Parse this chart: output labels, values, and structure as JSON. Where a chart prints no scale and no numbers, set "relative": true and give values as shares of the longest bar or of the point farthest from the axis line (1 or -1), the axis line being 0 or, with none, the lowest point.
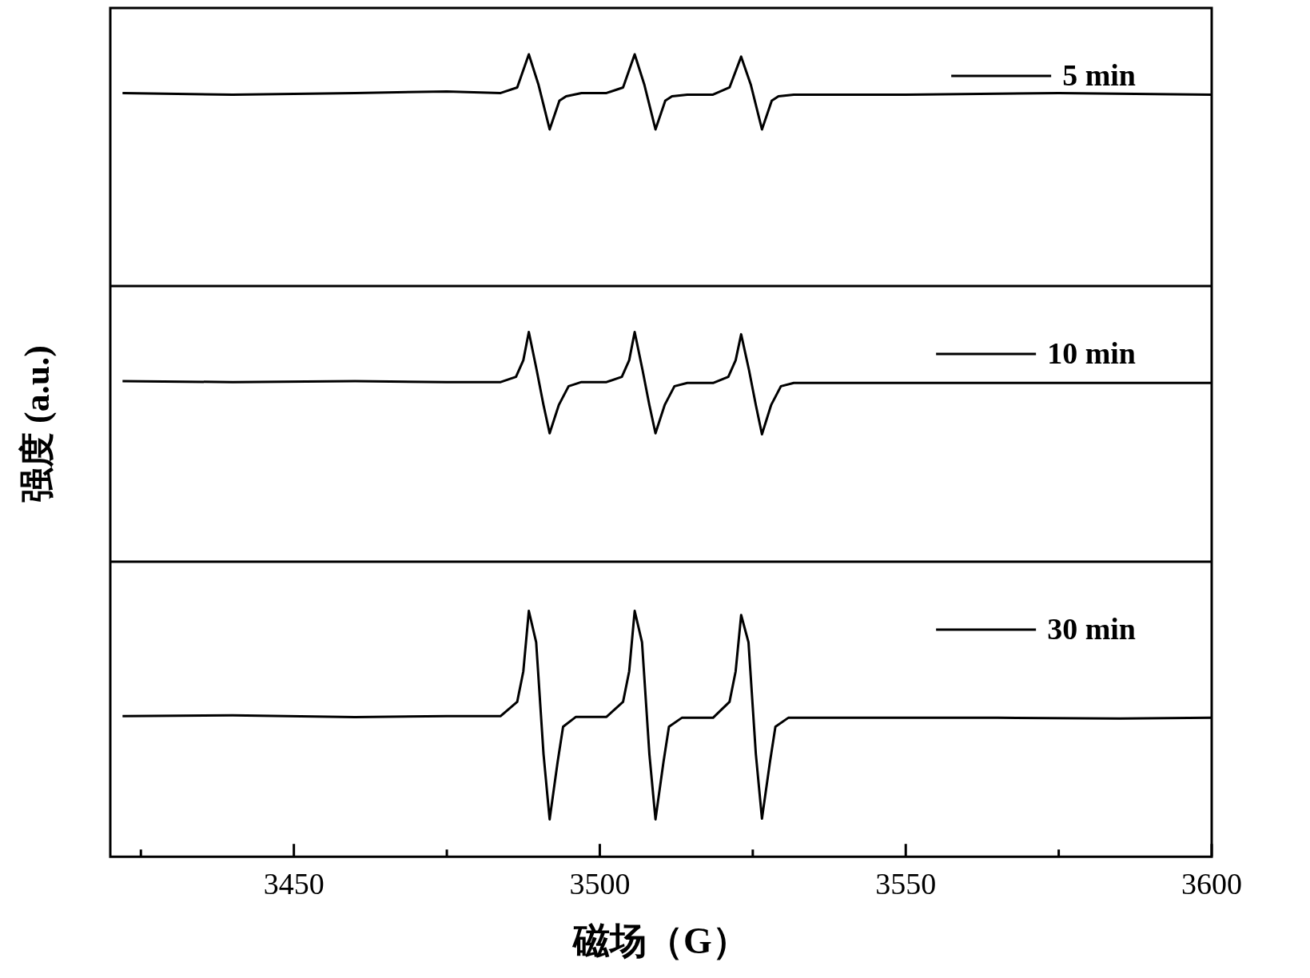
{
  "chart_data": [
    {
      "type": "line",
      "relative": true,
      "xlim": [
        3420,
        3600
      ],
      "tick_labels": false,
      "legend": "top right",
      "marker": "none",
      "line_style": "solid",
      "series": [
        {
          "name": "5 min",
          "color": "#000000",
          "x": [
            3422,
            3440,
            3460,
            3475,
            3483.8,
            3486.5,
            3488.4,
            3490,
            3491.8,
            3493.4,
            3494.5,
            3497,
            3501.1,
            3503.8,
            3505.7,
            3507.3,
            3509.1,
            3510.7,
            3511.8,
            3514.3,
            3518.5,
            3521.2,
            3523.1,
            3524.7,
            3526.5,
            3528.1,
            3529.2,
            3531.7,
            3550,
            3575,
            3600
          ],
          "values": [
            0.833,
            0.826,
            0.833,
            0.84,
            0.833,
            0.857,
            1,
            0.867,
            0.676,
            0.8,
            0.819,
            0.833,
            0.833,
            0.857,
            1,
            0.867,
            0.676,
            0.8,
            0.819,
            0.826,
            0.826,
            0.857,
            0.99,
            0.867,
            0.676,
            0.8,
            0.819,
            0.826,
            0.826,
            0.833,
            0.826
          ]
        }
      ]
    },
    {
      "type": "line",
      "relative": true,
      "xlim": [
        3420,
        3600
      ],
      "tick_labels": false,
      "legend": "top right",
      "marker": "none",
      "line_style": "solid",
      "ylabel": "强度 (a.u.)",
      "series": [
        {
          "name": "10 min",
          "color": "#000000",
          "x": [
            3422,
            3440,
            3460,
            3475,
            3483.8,
            3486.3,
            3487.5,
            3488.4,
            3489.7,
            3490.8,
            3491.8,
            3493.3,
            3494.9,
            3497,
            3501.1,
            3503.6,
            3504.8,
            3505.7,
            3507,
            3508.1,
            3509.1,
            3510.6,
            3512.2,
            3514.3,
            3518.5,
            3521,
            3522.2,
            3523.1,
            3524.4,
            3525.5,
            3526.5,
            3528,
            3529.6,
            3531.7,
            3550,
            3575,
            3600
          ],
          "values": [
            0.786,
            0.782,
            0.786,
            0.782,
            0.782,
            0.805,
            0.877,
            1,
            0.832,
            0.682,
            0.559,
            0.682,
            0.764,
            0.782,
            0.782,
            0.805,
            0.877,
            1,
            0.832,
            0.682,
            0.559,
            0.682,
            0.764,
            0.778,
            0.778,
            0.805,
            0.877,
            0.99,
            0.832,
            0.682,
            0.555,
            0.682,
            0.764,
            0.778,
            0.778,
            0.778,
            0.778
          ]
        }
      ]
    },
    {
      "type": "line",
      "relative": true,
      "xlim": [
        3420,
        3600
      ],
      "xticks": [
        {
          "value": 3425,
          "label": null
        },
        3450,
        {
          "value": 3475,
          "label": null
        },
        3500,
        {
          "value": 3525,
          "label": null
        },
        3550,
        {
          "value": 3575,
          "label": null
        },
        3600
      ],
      "tick_labels": "x",
      "xlabel": "磁场（G）",
      "legend": "top right",
      "marker": "none",
      "line_style": "solid",
      "series": [
        {
          "name": "30 min",
          "color": "#000000",
          "x": [
            3422,
            3440,
            3460,
            3475,
            3483.8,
            3486.5,
            3487.5,
            3488.4,
            3489.6,
            3490.8,
            3491.8,
            3493.1,
            3494,
            3496.1,
            3501.1,
            3503.8,
            3504.8,
            3505.7,
            3506.9,
            3508.1,
            3509.1,
            3510.4,
            3511.3,
            3513.4,
            3518.5,
            3521.2,
            3522.2,
            3523.1,
            3524.3,
            3525.5,
            3526.5,
            3527.8,
            3528.7,
            3530.8,
            3545,
            3565,
            3585,
            3600
          ],
          "values": [
            0.572,
            0.575,
            0.568,
            0.572,
            0.572,
            0.63,
            0.754,
            1,
            0.872,
            0.418,
            0.152,
            0.384,
            0.529,
            0.569,
            0.569,
            0.63,
            0.754,
            1,
            0.872,
            0.418,
            0.152,
            0.384,
            0.529,
            0.565,
            0.565,
            0.63,
            0.754,
            0.983,
            0.872,
            0.418,
            0.155,
            0.384,
            0.529,
            0.565,
            0.565,
            0.565,
            0.562,
            0.565
          ]
        }
      ]
    }
  ]
}
